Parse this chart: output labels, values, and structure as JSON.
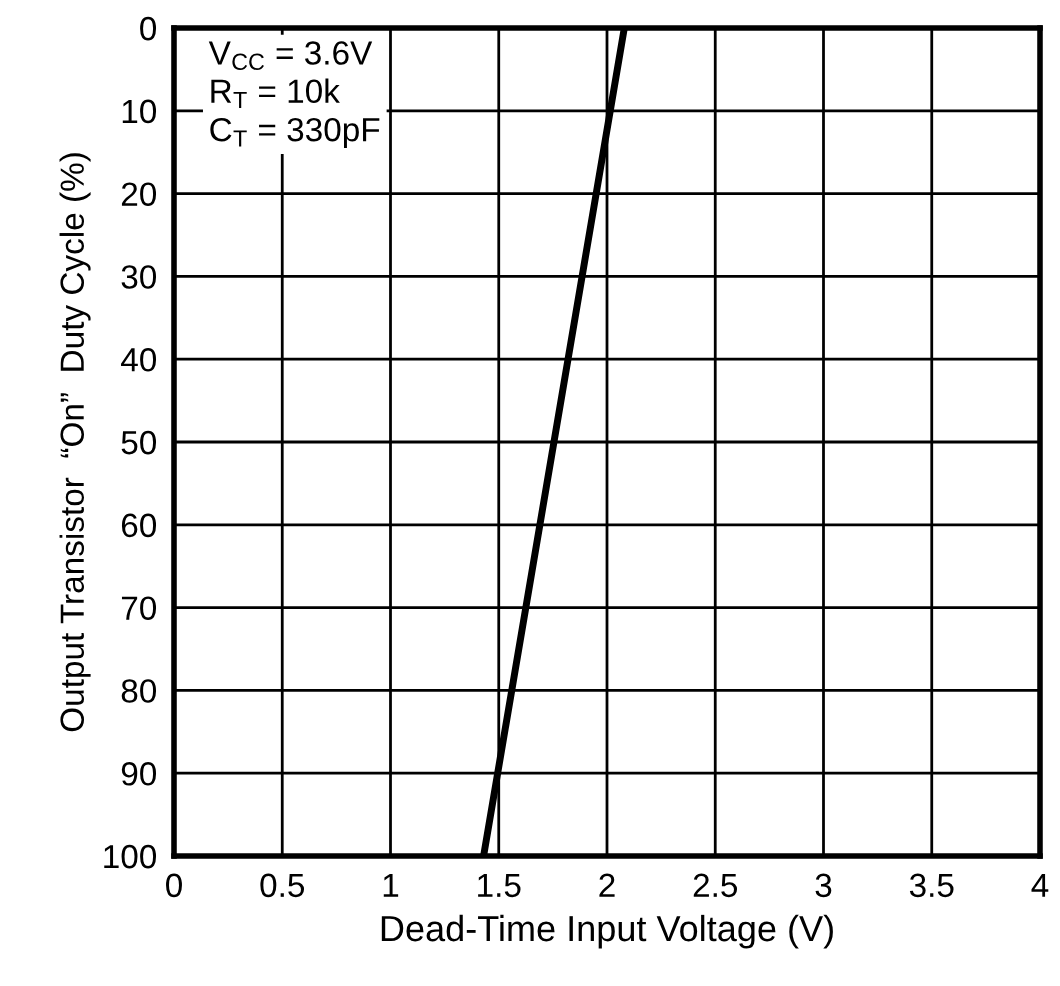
{
  "chart_data": {
    "type": "line",
    "xlabel": "Dead-Time Input Voltage (V)",
    "ylabel": "Output Transistor  “On”  Duty Cycle (%)",
    "x": [
      1.43,
      2.08
    ],
    "series": [
      {
        "color": "#000000",
        "values": [
          100,
          0
        ]
      }
    ],
    "xlim": [
      0,
      4
    ],
    "xticks": [
      0,
      0.5,
      1,
      1.5,
      2,
      2.5,
      3,
      3.5,
      4
    ],
    "ylim": [
      100,
      0
    ],
    "yticks": [
      0,
      10,
      20,
      30,
      40,
      50,
      60,
      70,
      80,
      90,
      100
    ],
    "grid": true,
    "marker": "none",
    "line_style": "solid",
    "legend": false,
    "annotations": [
      "V$_{CC}$ = 3.6V",
      "R$_{T}$ = 10k",
      "C$_{T}$ = 330pF"
    ]
  }
}
